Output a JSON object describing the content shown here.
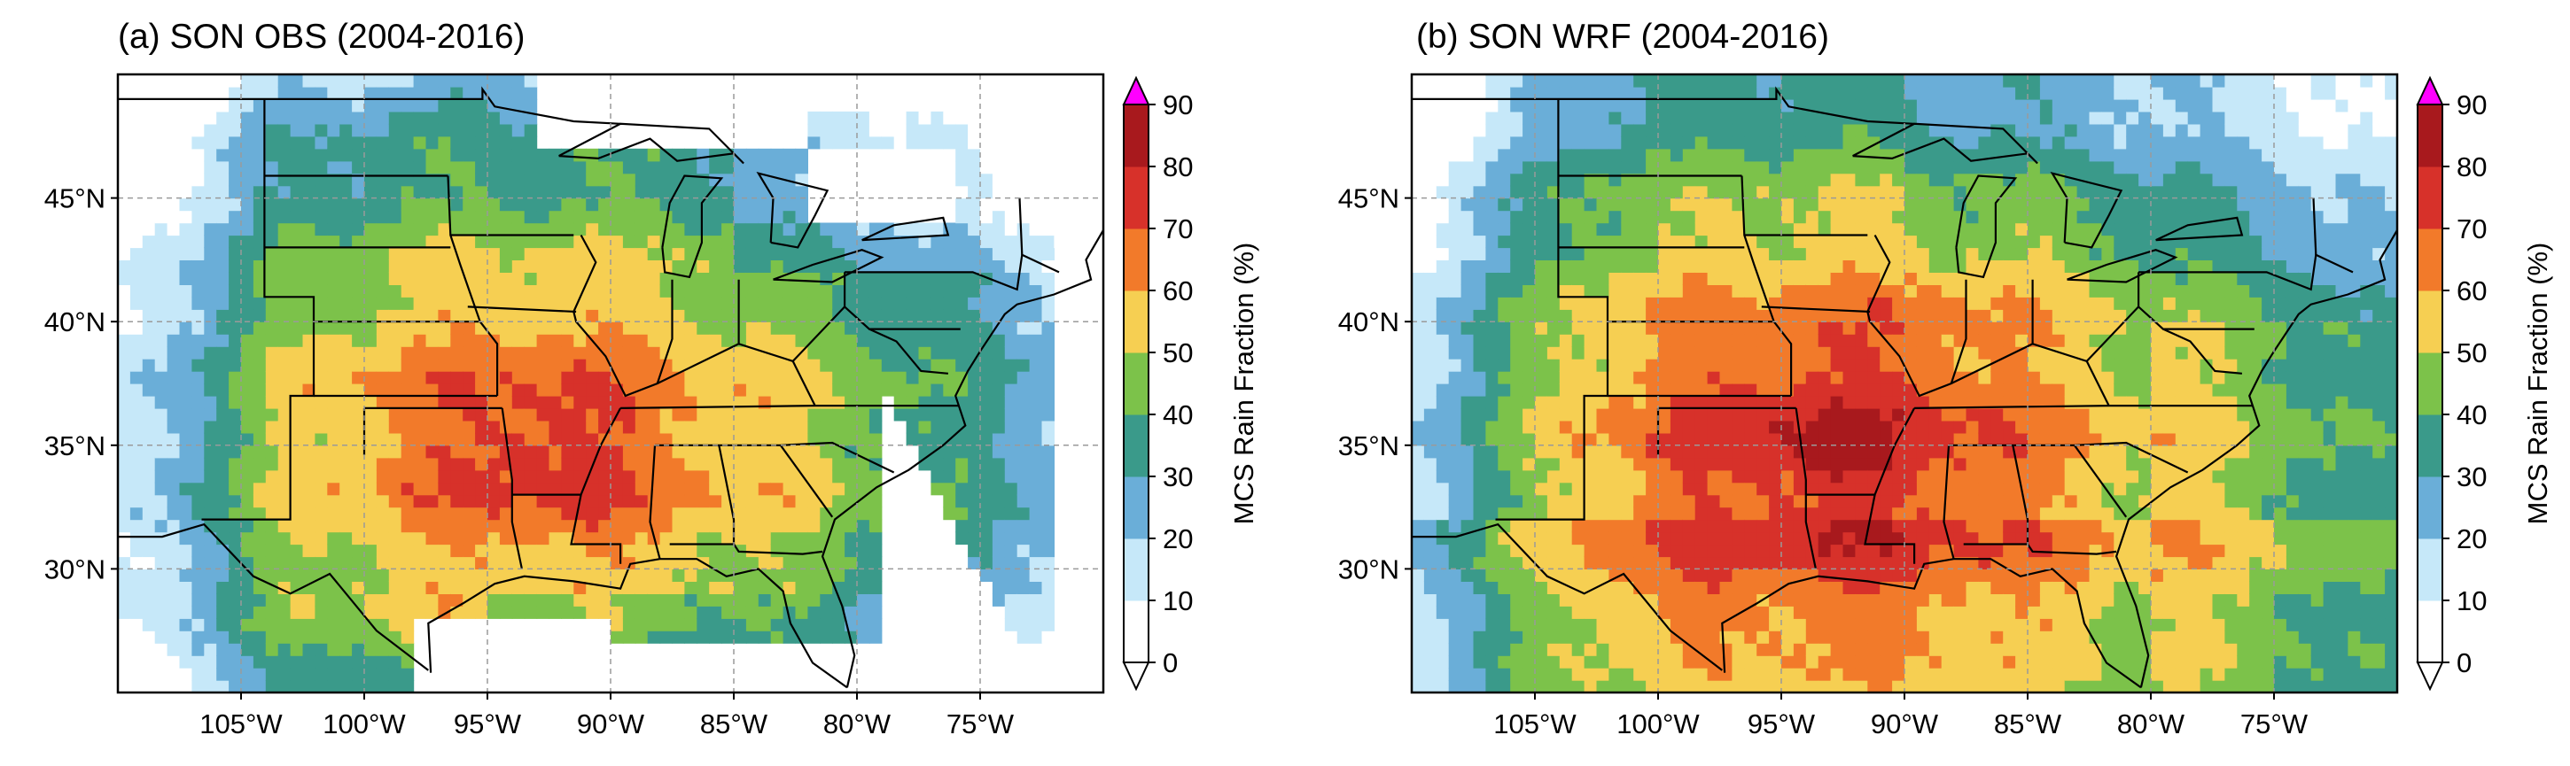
{
  "panels": [
    {
      "id": "a",
      "title": "(a) SON OBS (2004-2016)",
      "field": "obs",
      "dataset": "OBS"
    },
    {
      "id": "b",
      "title": "(b) SON WRF (2004-2016)",
      "field": "wrf",
      "dataset": "WRF"
    }
  ],
  "map": {
    "lon_range": [
      -110,
      -70
    ],
    "lat_range": [
      25,
      50
    ],
    "lon_ticks": [
      "105°W",
      "100°W",
      "95°W",
      "90°W",
      "85°W",
      "80°W",
      "75°W"
    ],
    "lon_tick_values": [
      -105,
      -100,
      -95,
      -90,
      -85,
      -80,
      -75
    ],
    "lat_ticks": [
      "30°N",
      "35°N",
      "40°N",
      "45°N"
    ],
    "lat_tick_values": [
      30,
      35,
      40,
      45
    ],
    "gridlines": true
  },
  "colorbar": {
    "title": "MCS Rain Fraction (%)",
    "levels": [
      "0",
      "10",
      "20",
      "30",
      "40",
      "50",
      "60",
      "70",
      "80",
      "90"
    ],
    "level_values": [
      0,
      10,
      20,
      30,
      40,
      50,
      60,
      70,
      80,
      90
    ],
    "colors": [
      "#ffffff",
      "#c6e8f9",
      "#6aaed8",
      "#3a9a8a",
      "#7cc24a",
      "#f6cf52",
      "#f27a2a",
      "#d7312a",
      "#a8191d"
    ],
    "over_color": "#ff00ff",
    "under_color": "#ffffff",
    "extend": "both"
  }
}
